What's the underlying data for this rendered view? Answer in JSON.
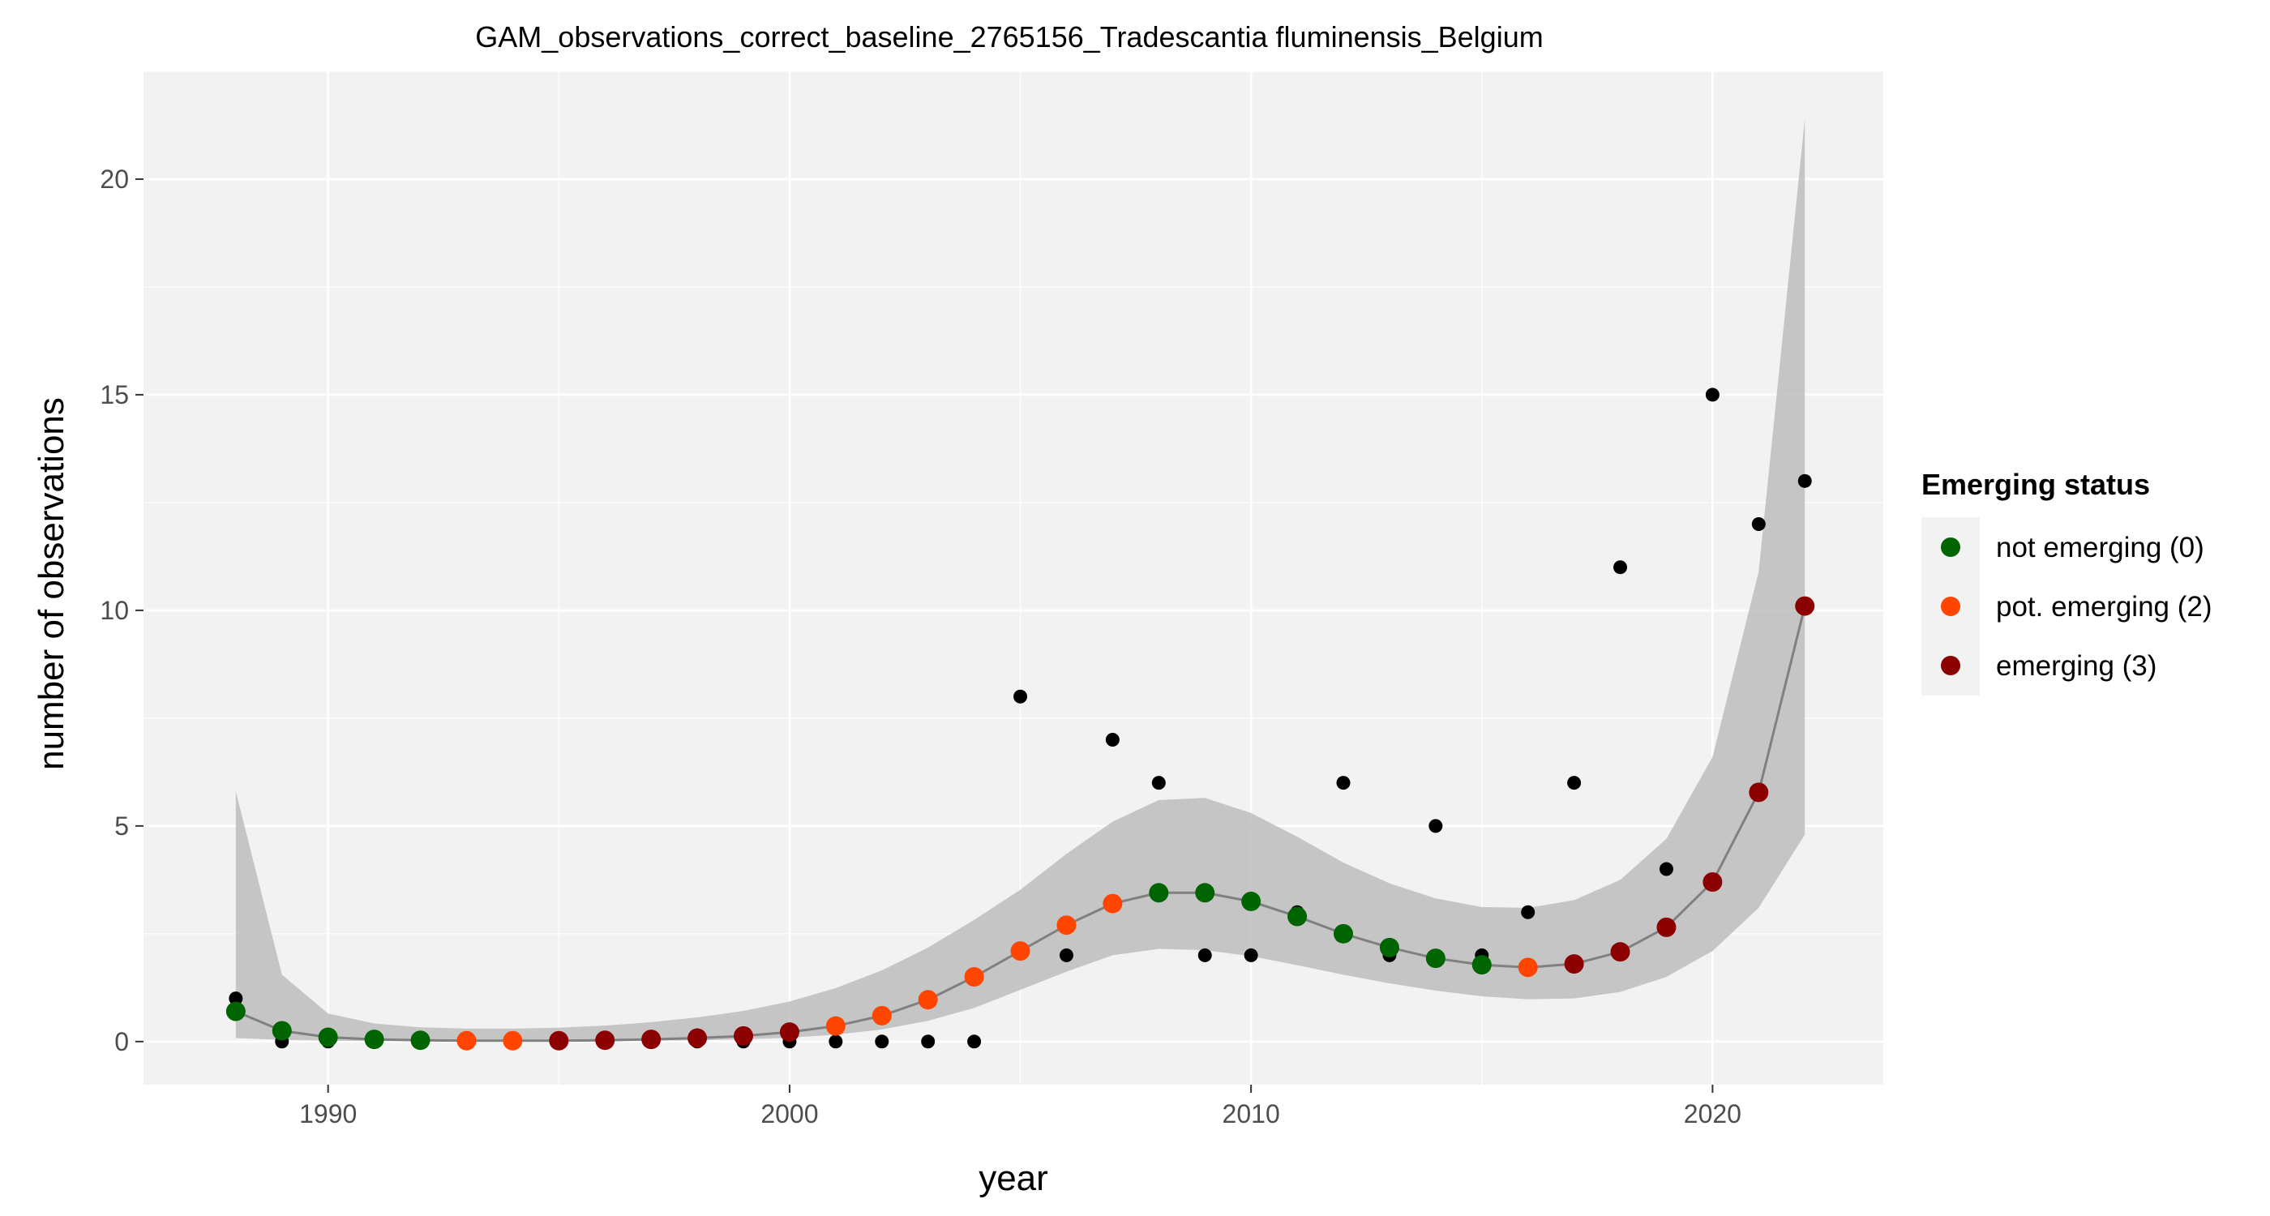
{
  "chart_data": {
    "type": "scatter",
    "title": "GAM_observations_correct_baseline_2765156_Tradescantia fluminensis_Belgium",
    "xlabel": "year",
    "ylabel": "number of observations",
    "xlim": [
      1986,
      2023.7
    ],
    "ylim": [
      -1,
      22.5
    ],
    "x_ticks": [
      1990,
      2000,
      2010,
      2020
    ],
    "y_ticks": [
      0,
      5,
      10,
      15,
      20
    ],
    "grid": true,
    "legend": {
      "title": "Emerging status",
      "placement": "right",
      "entries": [
        {
          "label": "not emerging (0)",
          "color": "#006400"
        },
        {
          "label": "pot. emerging (2)",
          "color": "#FF4500"
        },
        {
          "label": "emerging (3)",
          "color": "#8B0000"
        }
      ]
    },
    "colors": {
      "observed": "#000000",
      "fit_line": "#808080",
      "ribbon": "#bdbdbd",
      "panel": "#f2f2f2",
      "grid": "#ffffff"
    },
    "observed": {
      "x": [
        1988,
        1989,
        1990,
        1991,
        1992,
        1993,
        1994,
        1995,
        1996,
        1997,
        1998,
        1999,
        2000,
        2001,
        2002,
        2003,
        2004,
        2005,
        2006,
        2007,
        2008,
        2009,
        2010,
        2011,
        2012,
        2013,
        2014,
        2015,
        2016,
        2017,
        2018,
        2019,
        2020,
        2021,
        2022
      ],
      "y": [
        1,
        0,
        0,
        0,
        0,
        0,
        0,
        0,
        0,
        0,
        0,
        0,
        0,
        0,
        0,
        0,
        0,
        8,
        2,
        7,
        6,
        2,
        2,
        3,
        6,
        2,
        5,
        2,
        3,
        6,
        11,
        4,
        15,
        12,
        13
      ]
    },
    "fit": {
      "x": [
        1988,
        1989,
        1990,
        1991,
        1992,
        1993,
        1994,
        1995,
        1996,
        1997,
        1998,
        1999,
        2000,
        2001,
        2002,
        2003,
        2004,
        2005,
        2006,
        2007,
        2008,
        2009,
        2010,
        2011,
        2012,
        2013,
        2014,
        2015,
        2016,
        2017,
        2018,
        2019,
        2020,
        2021,
        2022
      ],
      "y": [
        0.7,
        0.25,
        0.1,
        0.05,
        0.03,
        0.02,
        0.02,
        0.02,
        0.03,
        0.05,
        0.08,
        0.13,
        0.22,
        0.36,
        0.6,
        0.97,
        1.5,
        2.1,
        2.7,
        3.2,
        3.45,
        3.45,
        3.25,
        2.9,
        2.5,
        2.18,
        1.93,
        1.78,
        1.72,
        1.8,
        2.08,
        2.65,
        3.7,
        5.78,
        10.1
      ],
      "lower": [
        0.08,
        0.04,
        0.02,
        0.01,
        0.01,
        0.01,
        0.01,
        0.01,
        0.01,
        0.02,
        0.03,
        0.05,
        0.09,
        0.16,
        0.28,
        0.48,
        0.78,
        1.2,
        1.62,
        2.0,
        2.15,
        2.12,
        1.98,
        1.77,
        1.55,
        1.35,
        1.18,
        1.05,
        0.98,
        1.0,
        1.15,
        1.5,
        2.1,
        3.1,
        4.8
      ],
      "upper": [
        5.8,
        1.55,
        0.65,
        0.42,
        0.33,
        0.3,
        0.3,
        0.32,
        0.37,
        0.45,
        0.56,
        0.71,
        0.93,
        1.24,
        1.65,
        2.18,
        2.82,
        3.52,
        4.35,
        5.1,
        5.6,
        5.65,
        5.3,
        4.75,
        4.15,
        3.67,
        3.32,
        3.12,
        3.1,
        3.28,
        3.75,
        4.7,
        6.6,
        10.9,
        21.4
      ],
      "status": [
        0,
        0,
        0,
        0,
        0,
        2,
        2,
        3,
        3,
        3,
        3,
        3,
        3,
        2,
        2,
        2,
        2,
        2,
        2,
        2,
        0,
        0,
        0,
        0,
        0,
        0,
        0,
        0,
        2,
        3,
        3,
        3,
        3,
        3,
        3
      ]
    }
  }
}
